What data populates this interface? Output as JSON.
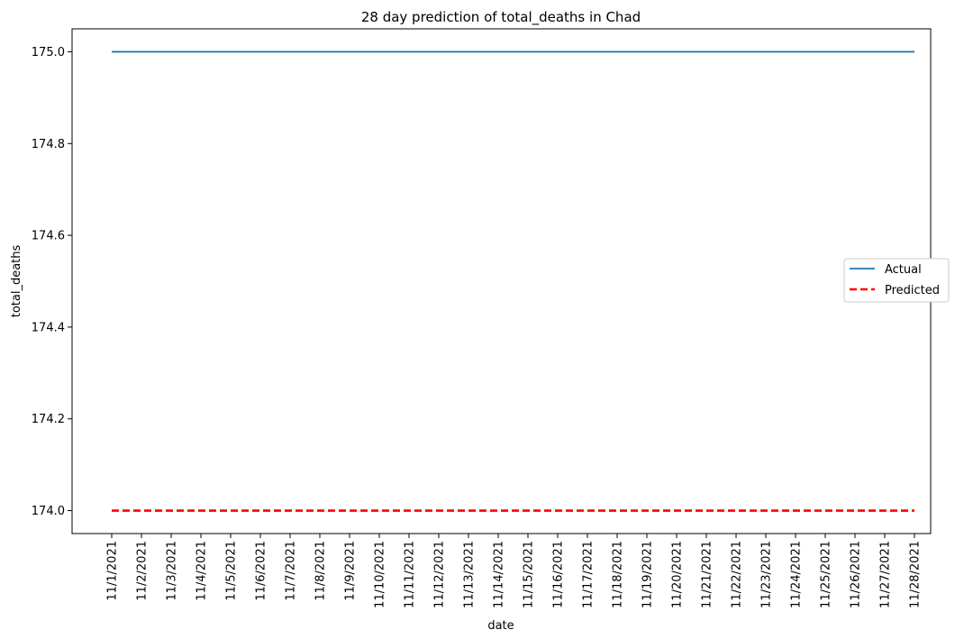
{
  "chart_data": {
    "type": "line",
    "title": "28 day prediction of total_deaths in Chad",
    "xlabel": "date",
    "ylabel": "total_deaths",
    "categories": [
      "11/1/2021",
      "11/2/2021",
      "11/3/2021",
      "11/4/2021",
      "11/5/2021",
      "11/6/2021",
      "11/7/2021",
      "11/8/2021",
      "11/9/2021",
      "11/10/2021",
      "11/11/2021",
      "11/12/2021",
      "11/13/2021",
      "11/14/2021",
      "11/15/2021",
      "11/16/2021",
      "11/17/2021",
      "11/18/2021",
      "11/19/2021",
      "11/20/2021",
      "11/21/2021",
      "11/22/2021",
      "11/23/2021",
      "11/24/2021",
      "11/25/2021",
      "11/26/2021",
      "11/27/2021",
      "11/28/2021"
    ],
    "ylim": [
      173.95,
      175.05
    ],
    "yticks": [
      174.0,
      174.2,
      174.4,
      174.6,
      174.8,
      175.0
    ],
    "ytick_labels": [
      "174.0",
      "174.2",
      "174.4",
      "174.6",
      "174.8",
      "175.0"
    ],
    "grid": false,
    "legend_position": "center-right",
    "series": [
      {
        "name": "Actual",
        "color": "#1f77b4",
        "style": "solid",
        "values": [
          175,
          175,
          175,
          175,
          175,
          175,
          175,
          175,
          175,
          175,
          175,
          175,
          175,
          175,
          175,
          175,
          175,
          175,
          175,
          175,
          175,
          175,
          175,
          175,
          175,
          175,
          175,
          175
        ]
      },
      {
        "name": "Predicted",
        "color": "#ff0000",
        "style": "dashed",
        "values": [
          174,
          174,
          174,
          174,
          174,
          174,
          174,
          174,
          174,
          174,
          174,
          174,
          174,
          174,
          174,
          174,
          174,
          174,
          174,
          174,
          174,
          174,
          174,
          174,
          174,
          174,
          174,
          174
        ]
      }
    ]
  }
}
